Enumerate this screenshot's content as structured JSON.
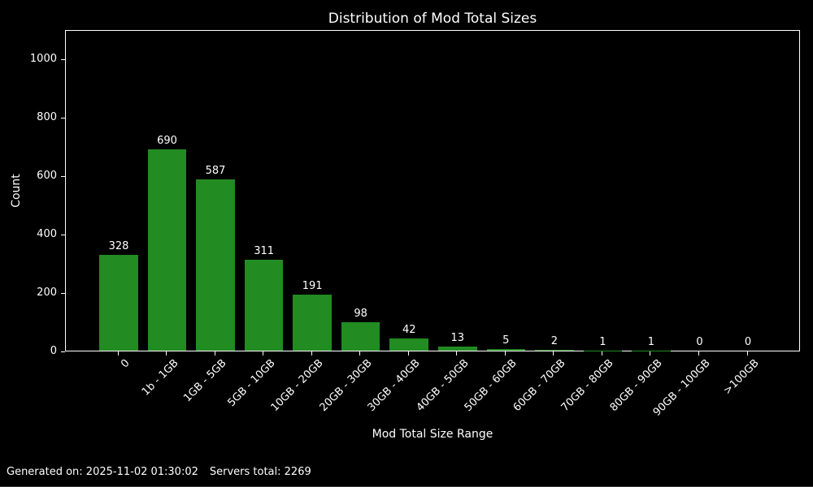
{
  "chart_data": {
    "type": "bar",
    "title": "Distribution of Mod Total Sizes",
    "xlabel": "Mod Total Size Range",
    "ylabel": "Count",
    "categories": [
      "0",
      "1b - 1GB",
      "1GB - 5GB",
      "5GB - 10GB",
      "10GB - 20GB",
      "20GB - 30GB",
      "30GB - 40GB",
      "40GB - 50GB",
      "50GB - 60GB",
      "60GB - 70GB",
      "70GB - 80GB",
      "80GB - 90GB",
      "90GB - 100GB",
      ">100GB"
    ],
    "values": [
      328,
      690,
      587,
      311,
      191,
      98,
      42,
      13,
      5,
      2,
      1,
      1,
      0,
      0
    ],
    "yticks": [
      0,
      200,
      400,
      600,
      800,
      1000
    ],
    "ylim": [
      0,
      1100
    ],
    "grid": false,
    "legend": "none",
    "bar_value_labels": true
  },
  "colors": {
    "background": "#000000",
    "bar": "#228B22",
    "text": "#ffffff",
    "axis": "#ffffff",
    "divider": "#333333"
  },
  "footer": {
    "generated_on": "Generated on: 2025-11-02 01:30:02",
    "servers_total": "Servers total: 2269"
  }
}
